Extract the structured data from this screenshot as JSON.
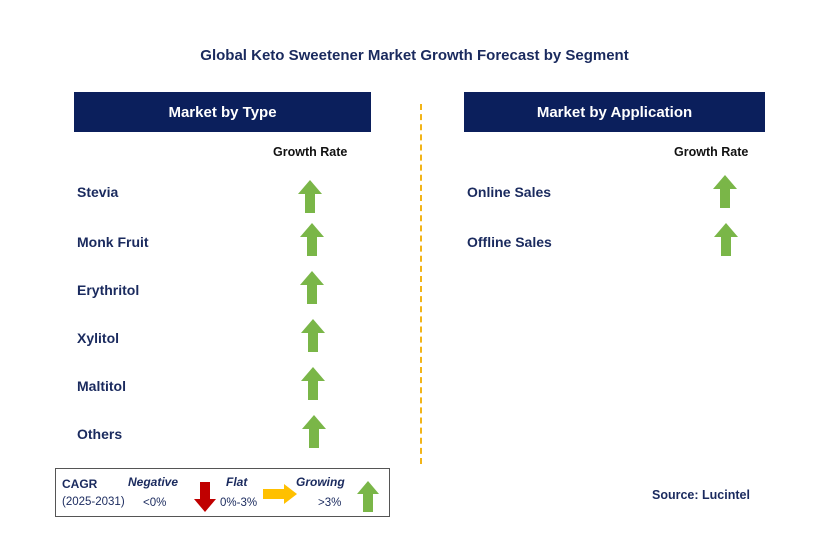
{
  "title": "Global Keto Sweetener Market Growth Forecast by Segment",
  "left_panel": {
    "header": "Market by Type",
    "column_header": "Growth Rate",
    "rows": [
      {
        "label": "Stevia",
        "trend": "growing"
      },
      {
        "label": "Monk Fruit",
        "trend": "growing"
      },
      {
        "label": "Erythritol",
        "trend": "growing"
      },
      {
        "label": "Xylitol",
        "trend": "growing"
      },
      {
        "label": "Maltitol",
        "trend": "growing"
      },
      {
        "label": "Others",
        "trend": "growing"
      }
    ]
  },
  "right_panel": {
    "header": "Market by Application",
    "column_header": "Growth Rate",
    "rows": [
      {
        "label": "Online Sales",
        "trend": "growing"
      },
      {
        "label": "Offline Sales",
        "trend": "growing"
      }
    ]
  },
  "legend": {
    "cagr_label": "CAGR",
    "period": "(2025-2031)",
    "negative_label": "Negative",
    "negative_range": "<0%",
    "flat_label": "Flat",
    "flat_range": "0%-3%",
    "growing_label": "Growing",
    "growing_range": ">3%"
  },
  "source": "Source: Lucintel",
  "colors": {
    "header_bg": "#0b1f5c",
    "text_navy": "#1a2a5e",
    "growing_arrow": "#7ab648",
    "negative_arrow": "#c00000",
    "flat_arrow": "#ffc000",
    "divider": "#f2b418"
  }
}
